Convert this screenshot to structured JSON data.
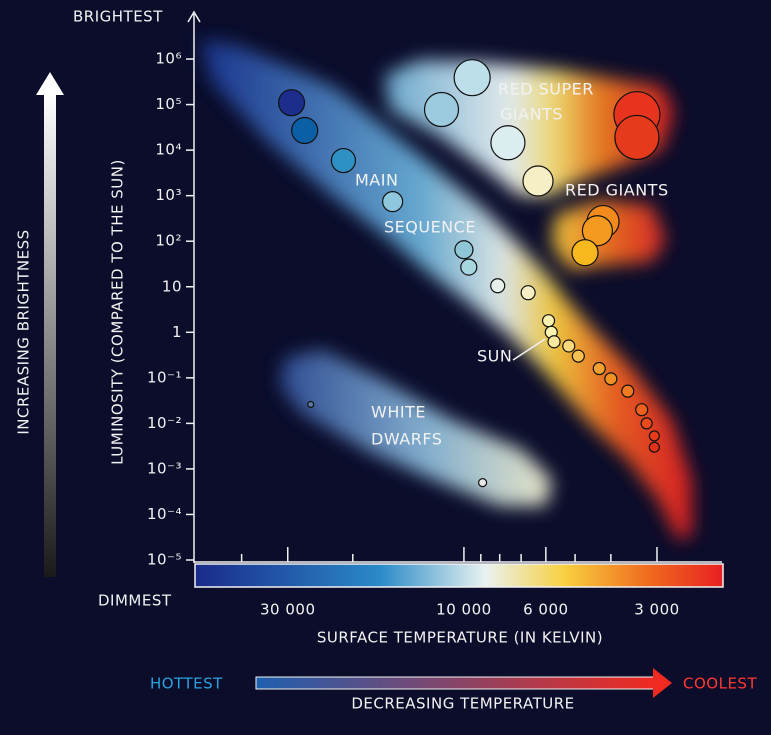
{
  "chart_data": {
    "type": "scatter",
    "top_label": "BRIGHTEST",
    "bottom_label": "DIMMEST",
    "left_arrow_label": "INCREASING BRIGHTNESS",
    "ylabel": "LUMINOSITY (COMPARED TO THE SUN)",
    "xlabel": "SURFACE TEMPERATURE (IN KELVIN)",
    "hot_label": "HOTTEST",
    "arrow_label": "DECREASING TEMPERATURE",
    "cool_label": "COOLEST",
    "annotations": [
      "RED SUPER",
      "GIANTS",
      "RED GIANTS",
      "MAIN",
      "SEQUENCE",
      "WHITE",
      "DWARFS",
      "SUN"
    ],
    "xscale": "log",
    "yscale": "log",
    "xlim": [
      53500,
      2000
    ],
    "ylim": [
      1e-05,
      10000000
    ],
    "xticks": [
      {
        "value": 30000,
        "label": "30 000"
      },
      {
        "value": 10000,
        "label": "10 000"
      },
      {
        "value": 6000,
        "label": "6 000"
      },
      {
        "value": 3000,
        "label": "3 000"
      }
    ],
    "xminorticks": [
      40000,
      20000,
      9000,
      8000,
      7000,
      5000,
      4000
    ],
    "yticks": [
      {
        "value": 1000000,
        "label": "10⁶"
      },
      {
        "value": 100000,
        "label": "10⁵"
      },
      {
        "value": 10000,
        "label": "10⁴"
      },
      {
        "value": 1000,
        "label": "10³"
      },
      {
        "value": 100,
        "label": "10²"
      },
      10,
      1,
      {
        "value": 0.1,
        "label": "10⁻¹"
      },
      {
        "value": 0.01,
        "label": "10⁻²"
      },
      {
        "value": 0.001,
        "label": "10⁻³"
      },
      {
        "value": 0.0001,
        "label": "10⁻⁴"
      },
      {
        "value": 1e-05,
        "label": "10⁻⁵"
      }
    ],
    "x": [
      29300,
      27000,
      21200,
      15600,
      10000,
      9700,
      8100,
      6700,
      5900,
      5800,
      5700,
      5200,
      4900,
      4300,
      4000,
      3600,
      3300,
      3200,
      3050,
      3050,
      11500,
      9500,
      7600,
      6300,
      3400,
      3400,
      4200,
      4350,
      4700,
      26000,
      8900
    ],
    "y": [
      110000,
      27000,
      5900,
      740,
      65,
      27,
      10.5,
      7.4,
      1.8,
      1,
      0.62,
      0.5,
      0.3,
      0.16,
      0.095,
      0.051,
      0.02,
      0.01,
      0.0053,
      0.003,
      78000,
      390000,
      14500,
      2100,
      60000,
      19000,
      270,
      170,
      56,
      0.026,
      0.0005
    ],
    "sizes": [
      13,
      13,
      12,
      10,
      9,
      8,
      7,
      7,
      6,
      6,
      6,
      6,
      6,
      6,
      6,
      6,
      6,
      5.5,
      5,
      5,
      17,
      18,
      17,
      15,
      23,
      22,
      16,
      15,
      13,
      3,
      4
    ],
    "colors": [
      "#1c2d8c",
      "#0b5fa5",
      "#2f90c4",
      "#8fc8dc",
      "#8ec6d6",
      "#a6d6df",
      "#e6f0ea",
      "#f6efc4",
      "#fbf2b0",
      "#fdf3b0",
      "#fbe9a0",
      "#f8d87a",
      "#f4c050",
      "#f3a030",
      "#f39022",
      "#f07a20",
      "#ee6020",
      "#ea4a1c",
      "#e63a1a",
      "#e3321a",
      "#9ccbe0",
      "#bcdfe9",
      "#dcedf0",
      "#f6eec4",
      "#e8341e",
      "#e63a1c",
      "#f28a1e",
      "#f49a20",
      "#f7b81e",
      "#5a7aa0",
      "#e8e8e8"
    ]
  }
}
